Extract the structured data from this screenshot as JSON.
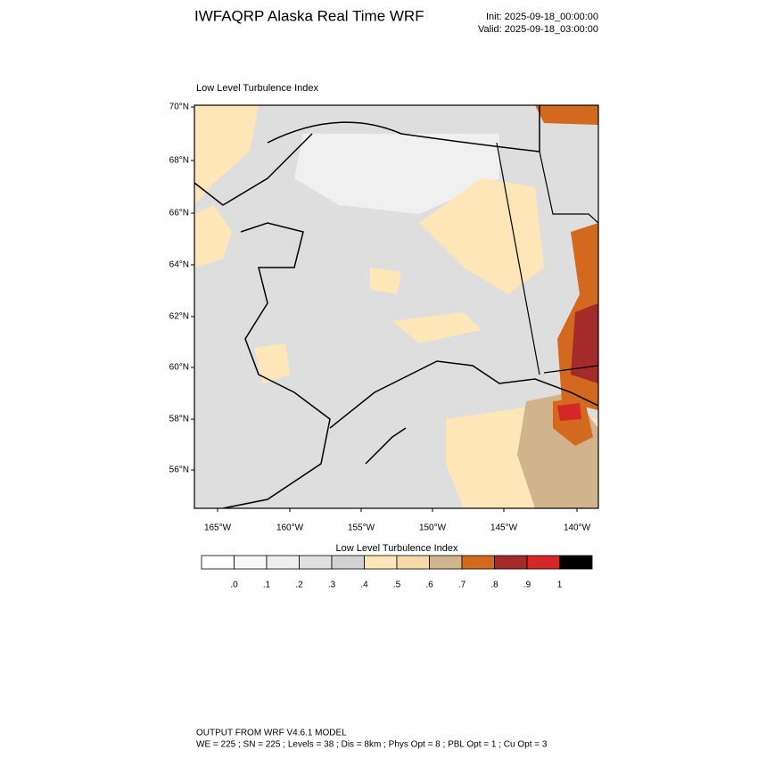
{
  "header": {
    "title": "IWFAQRP Alaska Real Time WRF",
    "init": "Init: 2025-09-18_00:00:00",
    "valid": "Valid: 2025-09-18_03:00:00"
  },
  "map": {
    "title": "Low Level Turbulence Index",
    "lat_labels": [
      "70°N",
      "68°N",
      "66°N",
      "64°N",
      "62°N",
      "60°N",
      "58°N",
      "56°N"
    ],
    "lon_labels": [
      "165°W",
      "160°W",
      "155°W",
      "150°W",
      "145°W",
      "140°W"
    ]
  },
  "colorbar": {
    "title": "Low Level Turbulence Index",
    "colors": [
      "#ffffff",
      "#f8f8f8",
      "#efefef",
      "#e0e0e0",
      "#d2d2d2",
      "#ffe6b8",
      "#f5d9a8",
      "#d2b48c",
      "#d2691e",
      "#a52a2a",
      "#d62728",
      "#000000"
    ],
    "ticks": [
      {
        "value": 0,
        "label": ".0"
      },
      {
        "value": 0.1,
        "label": ".1"
      },
      {
        "value": 0.2,
        "label": ".2"
      },
      {
        "value": 0.3,
        "label": ".3"
      },
      {
        "value": 0.4,
        "label": ".4"
      },
      {
        "value": 0.5,
        "label": ".5"
      },
      {
        "value": 0.6,
        "label": ".6"
      },
      {
        "value": 0.7,
        "label": ".7"
      },
      {
        "value": 0.8,
        "label": ".8"
      },
      {
        "value": 0.9,
        "label": ".9"
      },
      1
    ]
  },
  "footer": {
    "line1": "OUTPUT FROM WRF V4.6.1 MODEL",
    "line2": "WE = 225 ; SN = 225 ; Levels = 38 ; Dis = 8km ; Phys Opt = 8 ; PBL Opt = 1 ; Cu Opt = 3"
  }
}
